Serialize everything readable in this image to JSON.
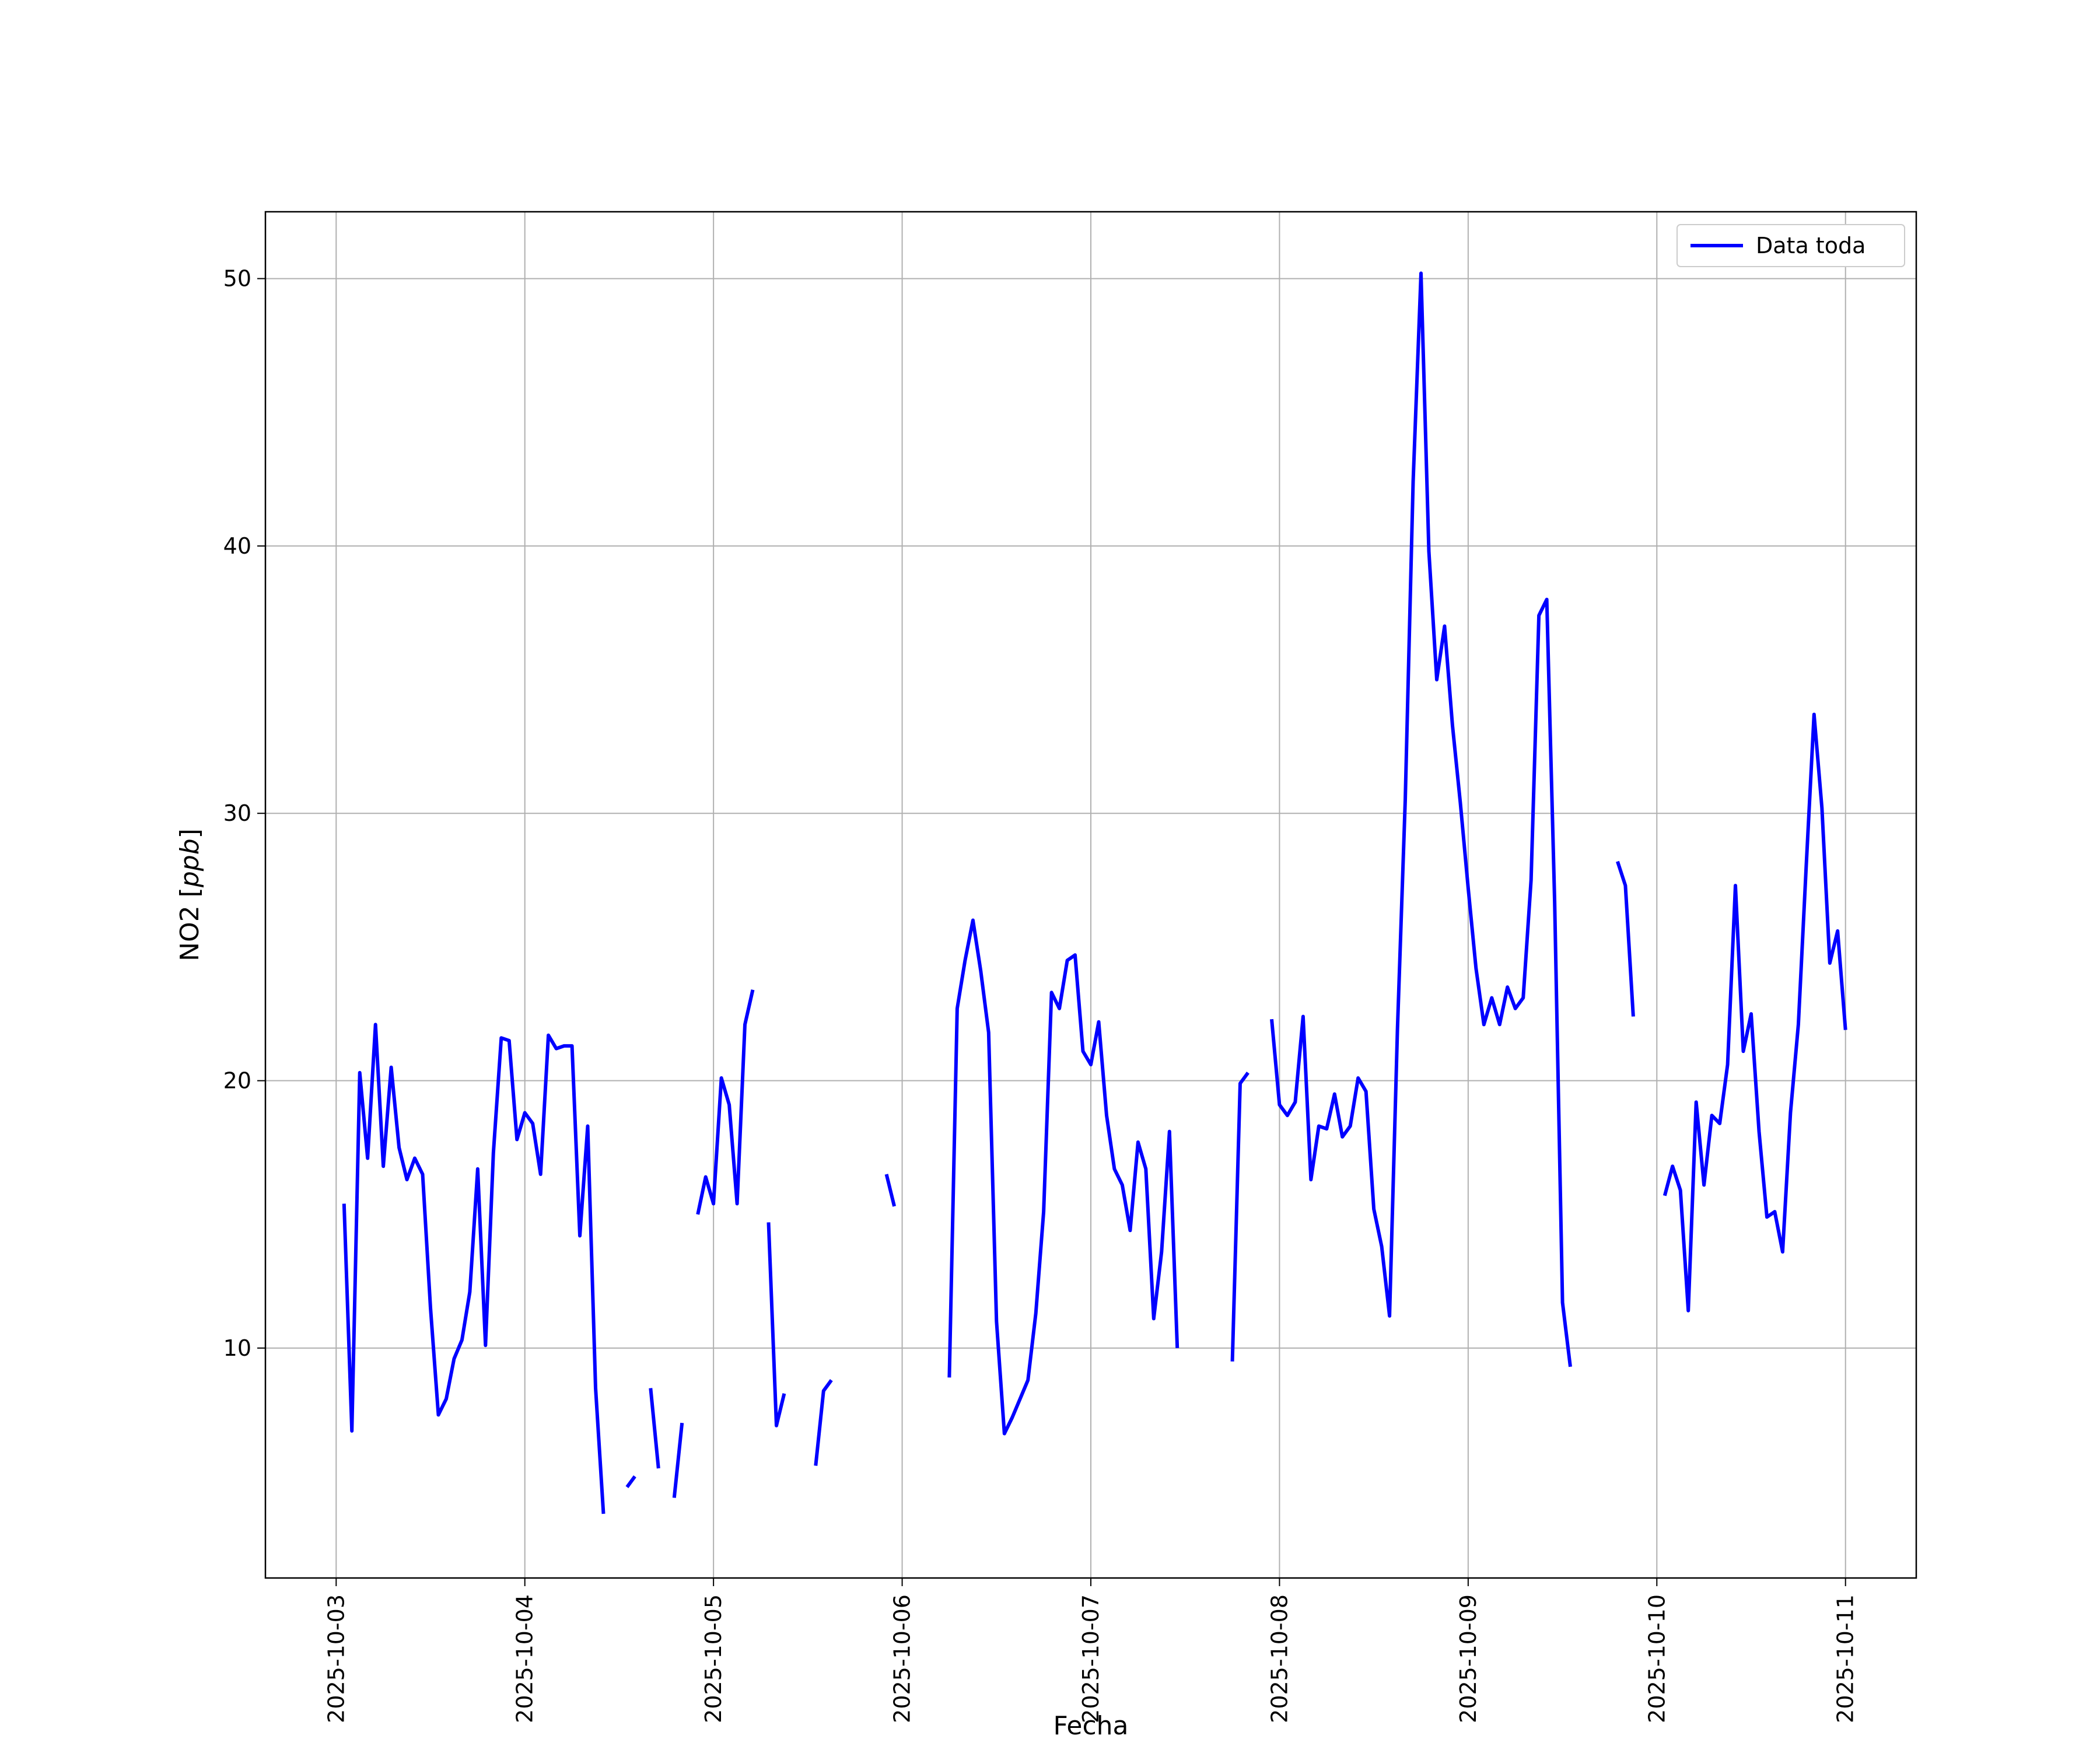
{
  "colors": {
    "series": "#0000ff",
    "grid": "#b0b0b0",
    "axes": "#000000",
    "background": "#ffffff"
  },
  "chart_data": {
    "type": "line",
    "title": "",
    "xlabel": "Fecha",
    "ylabel": "NO2 [ppb]",
    "ylabel_parts": {
      "main": "NO2 [",
      "unit": "ppb",
      "close": "]"
    },
    "xlim": [
      "2025-10-02T15:00",
      "2025-10-11T09:00"
    ],
    "ylim": [
      1.4,
      52.5
    ],
    "grid": true,
    "legend": {
      "position": "top-right",
      "entries": [
        "Data toda"
      ]
    },
    "x_ticks": [
      "2025-10-03",
      "2025-10-04",
      "2025-10-05",
      "2025-10-06",
      "2025-10-07",
      "2025-10-08",
      "2025-10-09",
      "2025-10-10",
      "2025-10-11"
    ],
    "y_ticks": [
      10,
      20,
      30,
      40,
      50
    ],
    "series": [
      {
        "name": "Data toda",
        "color": "#0000ff",
        "segments": [
          [
            [
              "2025-10-03T01:00",
              15.4
            ],
            [
              "2025-10-03T02:00",
              6.9
            ],
            [
              "2025-10-03T03:00",
              20.3
            ],
            [
              "2025-10-03T04:00",
              17.1
            ],
            [
              "2025-10-03T05:00",
              22.1
            ],
            [
              "2025-10-03T06:00",
              16.8
            ],
            [
              "2025-10-03T07:00",
              20.5
            ],
            [
              "2025-10-03T08:00",
              17.5
            ],
            [
              "2025-10-03T09:00",
              16.3
            ],
            [
              "2025-10-03T10:00",
              17.1
            ],
            [
              "2025-10-03T11:00",
              16.5
            ],
            [
              "2025-10-03T12:00",
              11.5
            ],
            [
              "2025-10-03T13:00",
              7.5
            ],
            [
              "2025-10-03T14:00",
              8.1
            ],
            [
              "2025-10-03T15:00",
              9.6
            ],
            [
              "2025-10-03T16:00",
              10.3
            ],
            [
              "2025-10-03T17:00",
              12.1
            ],
            [
              "2025-10-03T18:00",
              16.7
            ],
            [
              "2025-10-03T19:00",
              10.1
            ],
            [
              "2025-10-03T20:00",
              17.3
            ],
            [
              "2025-10-03T21:00",
              21.6
            ],
            [
              "2025-10-03T22:00",
              21.5
            ],
            [
              "2025-10-03T23:00",
              17.8
            ],
            [
              "2025-10-04T00:00",
              18.8
            ],
            [
              "2025-10-04T01:00",
              18.4
            ],
            [
              "2025-10-04T02:00",
              16.5
            ],
            [
              "2025-10-04T03:00",
              21.7
            ],
            [
              "2025-10-04T04:00",
              21.2
            ],
            [
              "2025-10-04T05:00",
              21.3
            ],
            [
              "2025-10-04T06:00",
              21.3
            ],
            [
              "2025-10-04T07:00",
              14.2
            ],
            [
              "2025-10-04T08:00",
              18.3
            ],
            [
              "2025-10-04T09:00",
              8.5
            ],
            [
              "2025-10-04T10:00",
              3.8
            ]
          ],
          [
            [
              "2025-10-04T13:00",
              4.8
            ],
            [
              "2025-10-04T14:00",
              5.2
            ]
          ],
          [
            [
              "2025-10-04T16:00",
              8.5
            ],
            [
              "2025-10-04T17:00",
              5.5
            ]
          ],
          [
            [
              "2025-10-04T19:00",
              4.4
            ],
            [
              "2025-10-04T20:00",
              7.2
            ]
          ],
          [
            [
              "2025-10-04T22:00",
              15.0
            ],
            [
              "2025-10-04T23:00",
              16.4
            ],
            [
              "2025-10-05T00:00",
              15.4
            ],
            [
              "2025-10-05T01:00",
              20.1
            ],
            [
              "2025-10-05T02:00",
              19.1
            ],
            [
              "2025-10-05T03:00",
              15.4
            ],
            [
              "2025-10-05T04:00",
              22.1
            ],
            [
              "2025-10-05T05:00",
              23.4
            ]
          ],
          [
            [
              "2025-10-05T07:00",
              14.7
            ],
            [
              "2025-10-05T08:00",
              7.1
            ],
            [
              "2025-10-05T09:00",
              8.3
            ]
          ],
          [
            [
              "2025-10-05T13:00",
              5.6
            ],
            [
              "2025-10-05T14:00",
              8.4
            ],
            [
              "2025-10-05T15:00",
              8.8
            ]
          ],
          [
            [
              "2025-10-05T22:00",
              16.5
            ],
            [
              "2025-10-05T23:00",
              15.3
            ]
          ],
          [
            [
              "2025-10-06T06:00",
              8.9
            ],
            [
              "2025-10-06T07:00",
              22.7
            ],
            [
              "2025-10-06T08:00",
              24.5
            ],
            [
              "2025-10-06T09:00",
              26.0
            ],
            [
              "2025-10-06T10:00",
              24.1
            ],
            [
              "2025-10-06T11:00",
              21.8
            ],
            [
              "2025-10-06T12:00",
              11.0
            ],
            [
              "2025-10-06T13:00",
              6.8
            ],
            [
              "2025-10-06T14:00",
              7.4
            ],
            [
              "2025-10-06T15:00",
              8.1
            ],
            [
              "2025-10-06T16:00",
              8.8
            ],
            [
              "2025-10-06T17:00",
              11.3
            ],
            [
              "2025-10-06T18:00",
              15.1
            ],
            [
              "2025-10-06T19:00",
              23.3
            ],
            [
              "2025-10-06T20:00",
              22.7
            ],
            [
              "2025-10-06T21:00",
              24.5
            ],
            [
              "2025-10-06T22:00",
              24.7
            ],
            [
              "2025-10-06T23:00",
              21.1
            ],
            [
              "2025-10-07T00:00",
              20.6
            ],
            [
              "2025-10-07T01:00",
              22.2
            ],
            [
              "2025-10-07T02:00",
              18.7
            ],
            [
              "2025-10-07T03:00",
              16.7
            ],
            [
              "2025-10-07T04:00",
              16.1
            ],
            [
              "2025-10-07T05:00",
              14.4
            ],
            [
              "2025-10-07T06:00",
              17.7
            ],
            [
              "2025-10-07T07:00",
              16.7
            ],
            [
              "2025-10-07T08:00",
              11.1
            ],
            [
              "2025-10-07T09:00",
              13.6
            ],
            [
              "2025-10-07T10:00",
              18.1
            ],
            [
              "2025-10-07T11:00",
              10.0
            ]
          ],
          [
            [
              "2025-10-07T18:00",
              9.5
            ],
            [
              "2025-10-07T19:00",
              19.9
            ],
            [
              "2025-10-07T20:00",
              20.3
            ]
          ],
          [
            [
              "2025-10-07T23:00",
              22.3
            ],
            [
              "2025-10-08T00:00",
              19.1
            ],
            [
              "2025-10-08T01:00",
              18.7
            ],
            [
              "2025-10-08T02:00",
              19.2
            ],
            [
              "2025-10-08T03:00",
              22.4
            ],
            [
              "2025-10-08T04:00",
              16.3
            ],
            [
              "2025-10-08T05:00",
              18.3
            ],
            [
              "2025-10-08T06:00",
              18.2
            ],
            [
              "2025-10-08T07:00",
              19.5
            ],
            [
              "2025-10-08T08:00",
              17.9
            ],
            [
              "2025-10-08T09:00",
              18.3
            ],
            [
              "2025-10-08T10:00",
              20.1
            ],
            [
              "2025-10-08T11:00",
              19.6
            ],
            [
              "2025-10-08T12:00",
              15.2
            ],
            [
              "2025-10-08T13:00",
              13.8
            ],
            [
              "2025-10-08T14:00",
              11.2
            ],
            [
              "2025-10-08T15:00",
              21.9
            ],
            [
              "2025-10-08T16:00",
              30.5
            ],
            [
              "2025-10-08T17:00",
              42.4
            ],
            [
              "2025-10-08T18:00",
              50.2
            ],
            [
              "2025-10-08T19:00",
              39.8
            ],
            [
              "2025-10-08T20:00",
              35.0
            ],
            [
              "2025-10-08T21:00",
              37.0
            ],
            [
              "2025-10-08T22:00",
              33.3
            ],
            [
              "2025-10-08T23:00",
              30.4
            ],
            [
              "2025-10-09T00:00",
              27.2
            ],
            [
              "2025-10-09T01:00",
              24.2
            ],
            [
              "2025-10-09T02:00",
              22.1
            ],
            [
              "2025-10-09T03:00",
              23.1
            ],
            [
              "2025-10-09T04:00",
              22.1
            ],
            [
              "2025-10-09T05:00",
              23.5
            ],
            [
              "2025-10-09T06:00",
              22.7
            ],
            [
              "2025-10-09T07:00",
              23.1
            ],
            [
              "2025-10-09T08:00",
              27.5
            ],
            [
              "2025-10-09T09:00",
              37.4
            ],
            [
              "2025-10-09T10:00",
              38.0
            ],
            [
              "2025-10-09T11:00",
              26.7
            ],
            [
              "2025-10-09T12:00",
              11.7
            ],
            [
              "2025-10-09T13:00",
              9.3
            ]
          ],
          [
            [
              "2025-10-09T19:00",
              28.2
            ],
            [
              "2025-10-09T20:00",
              27.3
            ],
            [
              "2025-10-09T21:00",
              22.4
            ]
          ],
          [
            [
              "2025-10-10T01:00",
              15.7
            ],
            [
              "2025-10-10T02:00",
              16.8
            ],
            [
              "2025-10-10T03:00",
              15.9
            ],
            [
              "2025-10-10T04:00",
              11.4
            ],
            [
              "2025-10-10T05:00",
              19.2
            ],
            [
              "2025-10-10T06:00",
              16.1
            ],
            [
              "2025-10-10T07:00",
              18.7
            ],
            [
              "2025-10-10T08:00",
              18.4
            ],
            [
              "2025-10-10T09:00",
              20.6
            ],
            [
              "2025-10-10T10:00",
              27.3
            ],
            [
              "2025-10-10T11:00",
              21.1
            ],
            [
              "2025-10-10T12:00",
              22.5
            ],
            [
              "2025-10-10T13:00",
              18.1
            ],
            [
              "2025-10-10T14:00",
              14.9
            ],
            [
              "2025-10-10T15:00",
              15.1
            ],
            [
              "2025-10-10T16:00",
              13.6
            ],
            [
              "2025-10-10T17:00",
              18.8
            ],
            [
              "2025-10-10T18:00",
              22.1
            ],
            [
              "2025-10-10T19:00",
              28.0
            ],
            [
              "2025-10-10T20:00",
              33.7
            ],
            [
              "2025-10-10T21:00",
              30.2
            ],
            [
              "2025-10-10T22:00",
              24.4
            ],
            [
              "2025-10-10T23:00",
              25.6
            ],
            [
              "2025-10-11T00:00",
              21.9
            ]
          ]
        ]
      }
    ]
  }
}
